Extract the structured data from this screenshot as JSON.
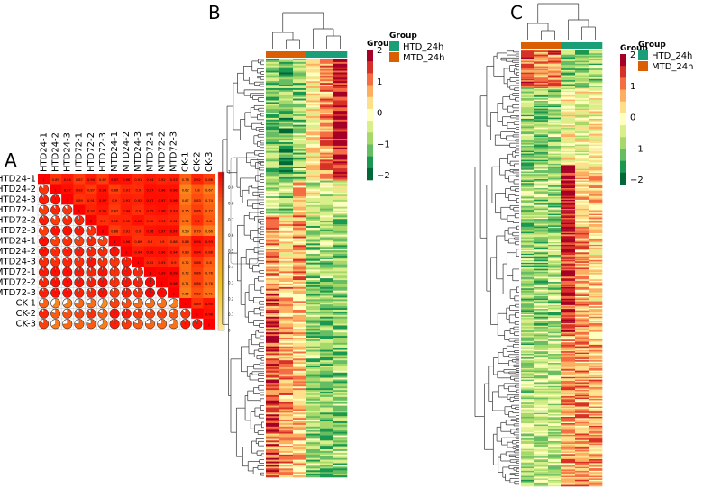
{
  "panels": {
    "a": "A",
    "b": "B",
    "c": "C"
  },
  "chart_data": [
    {
      "type": "heatmap",
      "panel": "A",
      "labels": [
        "HTD24-1",
        "HTD24-2",
        "HTD24-3",
        "HTD72-1",
        "HTD72-2",
        "HTD72-3",
        "MTD24-1",
        "MTD24-2",
        "MTD24-3",
        "MTD72-1",
        "MTD72-2",
        "MTD72-3",
        "CK-1",
        "CK-2",
        "CK-3"
      ],
      "upper_triangle": [
        [
          1,
          0.89,
          0.94,
          0.87,
          0.94,
          0.87,
          0.97,
          0.96,
          0.91,
          0.94,
          0.92,
          0.93,
          0.78,
          0.92,
          0.86
        ],
        [
          1,
          0.97,
          0.92,
          0.87,
          0.96,
          0.86,
          0.91,
          0.9,
          0.97,
          0.96,
          0.96,
          0.62,
          0.8,
          0.67
        ],
        [
          1,
          0.89,
          0.91,
          0.97,
          0.9,
          0.93,
          0.92,
          0.97,
          0.97,
          0.96,
          0.67,
          0.83,
          0.74
        ],
        [
          1,
          0.92,
          0.95,
          0.87,
          0.94,
          0.9,
          0.95,
          0.96,
          0.93,
          0.75,
          0.86,
          0.77
        ],
        [
          1,
          0.9,
          0.92,
          0.92,
          0.96,
          0.92,
          0.93,
          0.92,
          0.72,
          0.9,
          0.8
        ],
        [
          1,
          0.86,
          0.91,
          0.9,
          0.96,
          0.97,
          0.97,
          0.59,
          0.79,
          0.66
        ],
        [
          1,
          0.96,
          0.89,
          0.9,
          0.9,
          0.88,
          0.86,
          0.96,
          0.93
        ],
        [
          1,
          0.94,
          0.96,
          0.96,
          0.94,
          0.83,
          0.94,
          0.88
        ],
        [
          1,
          0.92,
          0.93,
          0.9,
          0.72,
          0.88,
          0.8
        ],
        [
          1,
          0.99,
          0.99,
          0.72,
          0.86,
          0.76
        ],
        [
          1,
          0.98,
          0.71,
          0.86,
          0.76
        ],
        [
          1,
          0.65,
          0.82,
          0.71
        ],
        [
          1,
          0.89,
          0.95
        ],
        [
          1,
          0.96
        ],
        [
          1
        ]
      ],
      "lower_triangle_style": "pie",
      "colorbar_ticks": [
        "1",
        "0.9",
        "0.8",
        "0.7",
        "0.6",
        "0.5",
        "0.4",
        "0.3",
        "0.2",
        "0.1",
        "0"
      ],
      "range": [
        0,
        1
      ]
    },
    {
      "type": "heatmap",
      "panel": "B",
      "column_groups": [
        "MTD_24h",
        "MTD_24h",
        "MTD_24h",
        "HTD_24h",
        "HTD_24h",
        "HTD_24h"
      ],
      "row_blocks": [
        {
          "rows": 70,
          "means": [
            -1,
            -1.2,
            -0.9,
            0.2,
            0.9,
            1.8
          ]
        },
        {
          "rows": 20,
          "means": [
            -0.6,
            -0.8,
            0.8,
            -0.3,
            -0.5,
            -0.2
          ]
        },
        {
          "rows": 40,
          "means": [
            0.8,
            0.4,
            0.9,
            -0.8,
            -0.8,
            -0.9
          ]
        },
        {
          "rows": 110,
          "means": [
            1.3,
            0.8,
            0.6,
            -0.9,
            -1,
            -0.9
          ]
        }
      ]
    },
    {
      "type": "heatmap",
      "panel": "C",
      "column_groups": [
        "MTD_24h",
        "MTD_24h",
        "MTD_24h",
        "HTD_24h",
        "HTD_24h",
        "HTD_24h"
      ],
      "row_blocks": [
        {
          "rows": 30,
          "means": [
            1.2,
            0.9,
            1.1,
            -0.9,
            -0.9,
            -0.8
          ]
        },
        {
          "rows": 60,
          "means": [
            -0.8,
            -0.9,
            -0.7,
            0.1,
            -0.1,
            0.1
          ]
        },
        {
          "rows": 50,
          "means": [
            -0.8,
            -0.7,
            -0.8,
            1.8,
            0.4,
            0.5
          ]
        },
        {
          "rows": 80,
          "means": [
            -0.8,
            -0.8,
            -0.8,
            1.7,
            0.8,
            0.5
          ]
        },
        {
          "rows": 120,
          "means": [
            -0.7,
            -0.6,
            -0.6,
            0.9,
            0.9,
            0.7
          ]
        }
      ]
    }
  ],
  "legend": {
    "scale_title": "Group",
    "scale_ticks": [
      "2",
      "1",
      "0",
      "−1",
      "−2"
    ],
    "group_title": "Group",
    "groups": [
      {
        "label": "HTD_24h",
        "color": "#1a9e77"
      },
      {
        "label": "MTD_24h",
        "color": "#d95f02"
      }
    ]
  },
  "palette": [
    "#a50026",
    "#d73027",
    "#f46d43",
    "#fdae61",
    "#fee08b",
    "#ffffbf",
    "#d9ef8b",
    "#a6d96a",
    "#66bd63",
    "#1a9850",
    "#006837"
  ]
}
